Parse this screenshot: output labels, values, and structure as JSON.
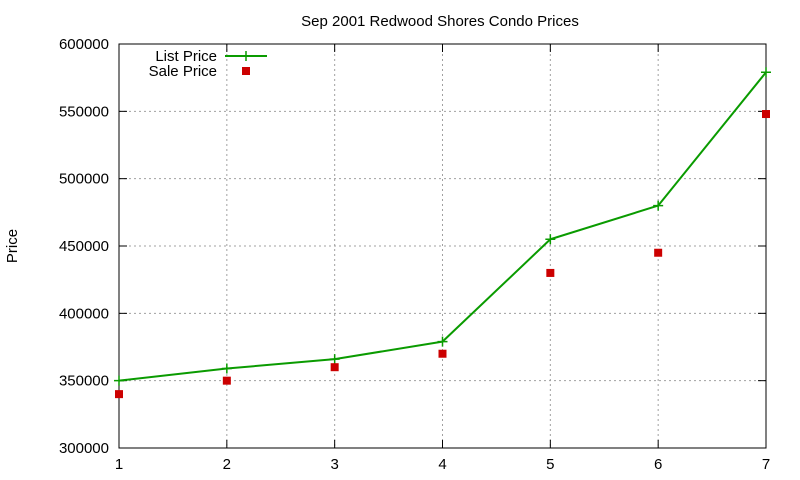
{
  "chart_data": {
    "type": "line",
    "title": "Sep 2001 Redwood Shores Condo Prices",
    "xlabel": "",
    "ylabel": "Price",
    "x": [
      1,
      2,
      3,
      4,
      5,
      6,
      7
    ],
    "xlim": [
      1,
      7
    ],
    "ylim": [
      300000,
      600000
    ],
    "x_ticks": [
      "1",
      "2",
      "3",
      "4",
      "5",
      "6",
      "7"
    ],
    "y_ticks": [
      "300000",
      "350000",
      "400000",
      "450000",
      "500000",
      "550000",
      "600000"
    ],
    "grid": true,
    "legend_position": "top-left",
    "series": [
      {
        "name": "List Price",
        "style": "line-with-plus-markers",
        "color": "#0a9b00",
        "values": [
          350000,
          359000,
          366000,
          379000,
          455000,
          480000,
          579000
        ]
      },
      {
        "name": "Sale Price",
        "style": "square-markers",
        "color": "#cc0000",
        "values": [
          340000,
          350000,
          360000,
          370000,
          430000,
          445000,
          548000
        ]
      }
    ]
  }
}
